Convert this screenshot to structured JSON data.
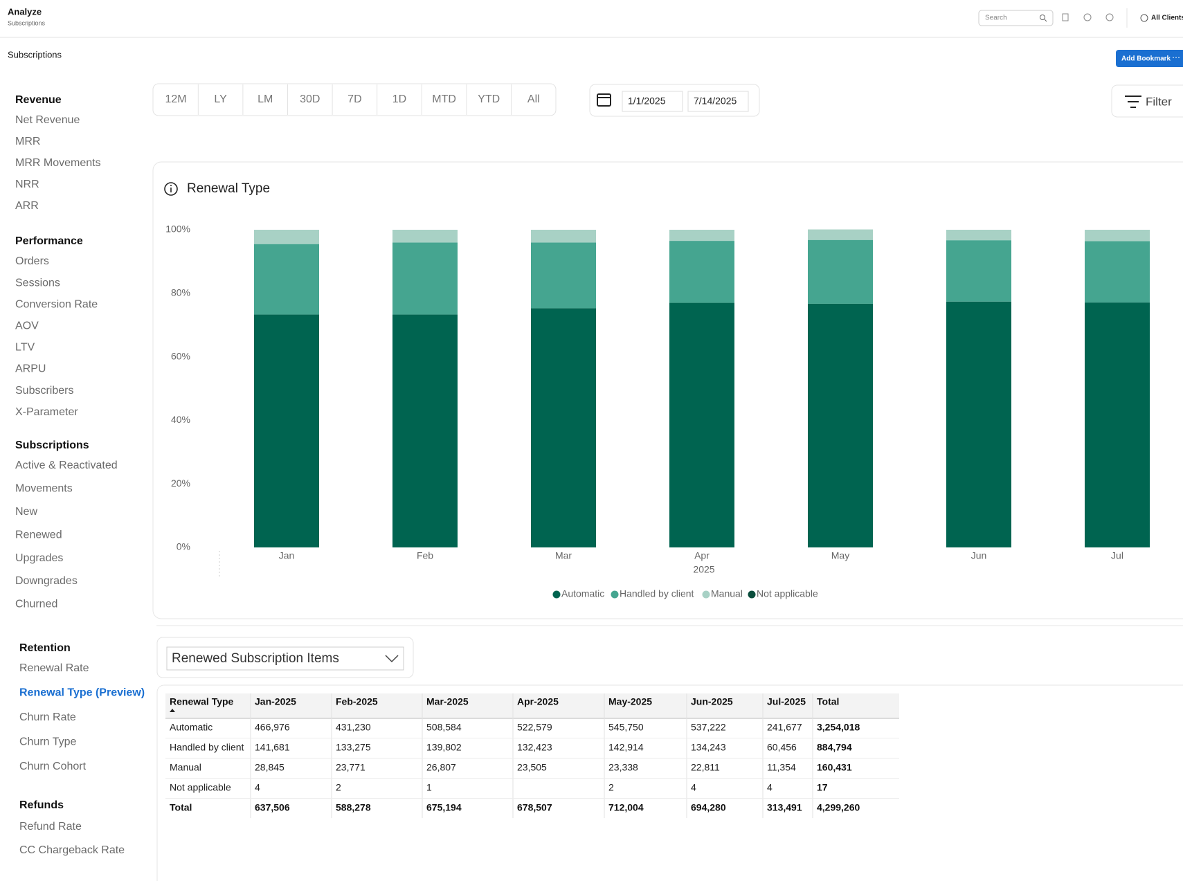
{
  "header": {
    "title": "Analyze",
    "subtitle": "Subscriptions",
    "search_placeholder": "Search",
    "client": "All Clients"
  },
  "breadcrumb": "Subscriptions",
  "add_bookmark": "Add Bookmark",
  "sidebar": [
    {
      "heading": "Revenue",
      "items": [
        "Net Revenue",
        "MRR",
        "MRR Movements",
        "NRR",
        "ARR"
      ]
    },
    {
      "heading": "Performance",
      "items": [
        "Orders",
        "Sessions",
        "Conversion Rate",
        "AOV",
        "LTV",
        "ARPU",
        "Subscribers",
        "X-Parameter"
      ]
    },
    {
      "heading": "Subscriptions",
      "items": [
        "Active & Reactivated",
        "Movements",
        "New",
        "Renewed",
        "Upgrades",
        "Downgrades",
        "Churned"
      ]
    },
    {
      "heading": "Retention",
      "items": [
        "Renewal Rate",
        "Renewal Type (Preview)",
        "Churn Rate",
        "Churn Type",
        "Churn Cohort"
      ],
      "active_index": 1
    },
    {
      "heading": "Refunds",
      "items": [
        "Refund Rate",
        "CC Chargeback Rate"
      ]
    }
  ],
  "periods": [
    "12M",
    "LY",
    "LM",
    "30D",
    "7D",
    "1D",
    "MTD",
    "YTD",
    "All"
  ],
  "date_range": {
    "start": "1/1/2025",
    "end": "7/14/2025"
  },
  "filter_label": "Filter",
  "chart_data": {
    "type": "stacked_bar",
    "title": "Renewal Type",
    "categories": [
      "Jan",
      "Feb",
      "Mar",
      "Apr",
      "May",
      "Jun",
      "Jul"
    ],
    "x_group_label": "2025",
    "series": [
      {
        "name": "Automatic",
        "color": "#006450",
        "values": [
          73.3,
          73.3,
          75.3,
          77.0,
          76.7,
          77.4,
          77.1
        ]
      },
      {
        "name": "Handled by client",
        "color": "#45a590",
        "values": [
          22.2,
          22.7,
          20.7,
          19.5,
          20.1,
          19.3,
          19.3
        ]
      },
      {
        "name": "Manual",
        "color": "#a8d1c5",
        "values": [
          4.5,
          4.0,
          4.0,
          3.5,
          3.3,
          3.3,
          3.6
        ]
      },
      {
        "name": "Not applicable",
        "color": "#0a4d3c",
        "values": [
          0,
          0,
          0,
          0,
          0,
          0,
          0
        ]
      }
    ],
    "ylim": [
      0,
      100
    ],
    "yticks": [
      {
        "value": 0,
        "label": "0%"
      },
      {
        "value": 20,
        "label": "20%"
      },
      {
        "value": 40,
        "label": "40%"
      },
      {
        "value": 60,
        "label": "60%"
      },
      {
        "value": 80,
        "label": "80%"
      },
      {
        "value": 100,
        "label": "100%"
      }
    ],
    "grid": false,
    "legend": "bottom"
  },
  "metric_select": "Renewed Subscription Items",
  "table": {
    "header": [
      "Renewal Type",
      "Jan-2025",
      "Feb-2025",
      "Mar-2025",
      "Apr-2025",
      "May-2025",
      "Jun-2025",
      "Jul-2025",
      "Total"
    ],
    "rows": [
      [
        "Automatic",
        "466,976",
        "431,230",
        "508,584",
        "522,579",
        "545,750",
        "537,222",
        "241,677",
        "3,254,018"
      ],
      [
        "Handled by client",
        "141,681",
        "133,275",
        "139,802",
        "132,423",
        "142,914",
        "134,243",
        "60,456",
        "884,794"
      ],
      [
        "Manual",
        "28,845",
        "23,771",
        "26,807",
        "23,505",
        "23,338",
        "22,811",
        "11,354",
        "160,431"
      ],
      [
        "Not applicable",
        "4",
        "2",
        "1",
        null,
        "2",
        "4",
        "4",
        "17"
      ],
      [
        "Total",
        "637,506",
        "588,278",
        "675,194",
        "678,507",
        "712,004",
        "694,280",
        "313,491",
        "4,299,260"
      ]
    ]
  }
}
